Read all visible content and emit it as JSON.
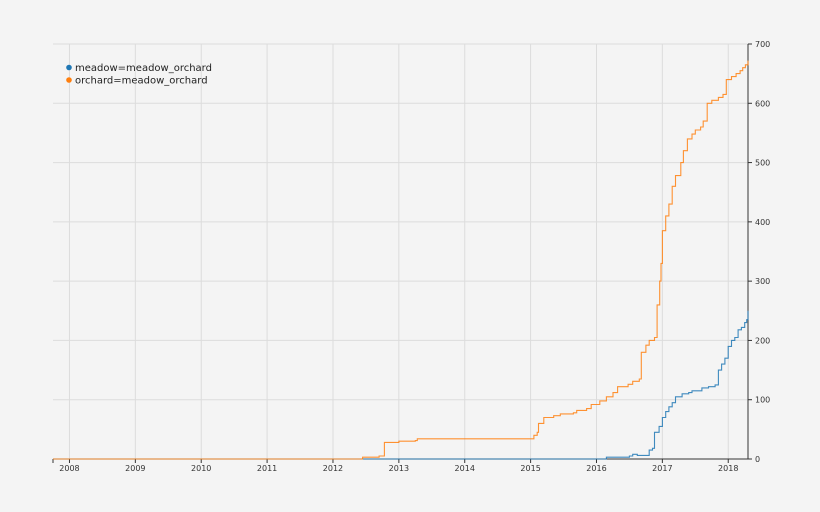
{
  "chart_data": {
    "type": "line",
    "title": "",
    "xlabel": "",
    "ylabel": "",
    "xlim": [
      2007.75,
      2018.3
    ],
    "ylim": [
      0,
      700
    ],
    "grid": true,
    "legend_position": "top-left",
    "y_axis_side": "right",
    "x_ticks": [
      "2008",
      "2009",
      "2010",
      "2011",
      "2012",
      "2013",
      "2014",
      "2015",
      "2016",
      "2017",
      "2018"
    ],
    "y_ticks": [
      "0",
      "100",
      "200",
      "300",
      "400",
      "500",
      "600",
      "700"
    ],
    "series": [
      {
        "name": "meadow=meadow_orchard",
        "color": "#1f77b4",
        "points": [
          [
            2007.75,
            0
          ],
          [
            2016.15,
            0
          ],
          [
            2016.15,
            3
          ],
          [
            2016.5,
            5
          ],
          [
            2016.55,
            8
          ],
          [
            2016.62,
            6
          ],
          [
            2016.75,
            6
          ],
          [
            2016.8,
            15
          ],
          [
            2016.85,
            18
          ],
          [
            2016.88,
            45
          ],
          [
            2016.95,
            55
          ],
          [
            2017.0,
            70
          ],
          [
            2017.05,
            80
          ],
          [
            2017.1,
            88
          ],
          [
            2017.15,
            95
          ],
          [
            2017.2,
            105
          ],
          [
            2017.3,
            110
          ],
          [
            2017.4,
            112
          ],
          [
            2017.45,
            115
          ],
          [
            2017.55,
            115
          ],
          [
            2017.6,
            120
          ],
          [
            2017.7,
            122
          ],
          [
            2017.8,
            125
          ],
          [
            2017.85,
            150
          ],
          [
            2017.9,
            160
          ],
          [
            2017.95,
            170
          ],
          [
            2018.0,
            190
          ],
          [
            2018.05,
            200
          ],
          [
            2018.1,
            205
          ],
          [
            2018.15,
            218
          ],
          [
            2018.2,
            222
          ],
          [
            2018.25,
            230
          ],
          [
            2018.28,
            235
          ],
          [
            2018.3,
            250
          ]
        ]
      },
      {
        "name": "orchard=meadow_orchard",
        "color": "#ff7f0e",
        "points": [
          [
            2007.75,
            0
          ],
          [
            2012.45,
            0
          ],
          [
            2012.45,
            3
          ],
          [
            2012.7,
            5
          ],
          [
            2012.77,
            5
          ],
          [
            2012.78,
            28
          ],
          [
            2013.0,
            30
          ],
          [
            2013.25,
            31
          ],
          [
            2013.28,
            34
          ],
          [
            2014.0,
            34
          ],
          [
            2014.95,
            34
          ],
          [
            2015.05,
            40
          ],
          [
            2015.1,
            45
          ],
          [
            2015.12,
            60
          ],
          [
            2015.2,
            70
          ],
          [
            2015.35,
            73
          ],
          [
            2015.45,
            76
          ],
          [
            2015.65,
            78
          ],
          [
            2015.7,
            82
          ],
          [
            2015.85,
            85
          ],
          [
            2015.92,
            92
          ],
          [
            2016.05,
            98
          ],
          [
            2016.15,
            105
          ],
          [
            2016.25,
            112
          ],
          [
            2016.32,
            122
          ],
          [
            2016.48,
            126
          ],
          [
            2016.55,
            131
          ],
          [
            2016.65,
            135
          ],
          [
            2016.68,
            180
          ],
          [
            2016.75,
            192
          ],
          [
            2016.8,
            200
          ],
          [
            2016.88,
            205
          ],
          [
            2016.92,
            260
          ],
          [
            2016.96,
            300
          ],
          [
            2016.98,
            330
          ],
          [
            2017.0,
            385
          ],
          [
            2017.05,
            410
          ],
          [
            2017.1,
            430
          ],
          [
            2017.15,
            460
          ],
          [
            2017.2,
            478
          ],
          [
            2017.28,
            500
          ],
          [
            2017.32,
            520
          ],
          [
            2017.38,
            540
          ],
          [
            2017.45,
            548
          ],
          [
            2017.5,
            555
          ],
          [
            2017.58,
            560
          ],
          [
            2017.62,
            570
          ],
          [
            2017.68,
            600
          ],
          [
            2017.75,
            605
          ],
          [
            2017.85,
            610
          ],
          [
            2017.92,
            615
          ],
          [
            2017.97,
            640
          ],
          [
            2018.05,
            645
          ],
          [
            2018.12,
            650
          ],
          [
            2018.18,
            655
          ],
          [
            2018.22,
            660
          ],
          [
            2018.26,
            665
          ],
          [
            2018.3,
            672
          ]
        ]
      }
    ]
  }
}
